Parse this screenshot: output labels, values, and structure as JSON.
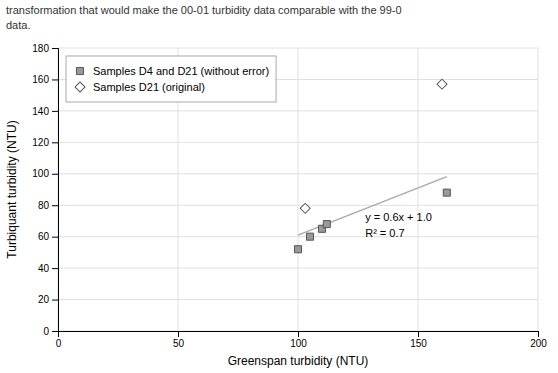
{
  "chart_data": {
    "type": "scatter",
    "subtitle": [
      "transformation that would make the 00-01 turbidity data comparable with the 99-0",
      "data."
    ],
    "xlabel": "Greenspan turbidity (NTU)",
    "ylabel": "Turbiquant turbidity (NTU)",
    "xlim": [
      0,
      200
    ],
    "ylim": [
      0,
      180
    ],
    "xticks": [
      0,
      50,
      100,
      150,
      200
    ],
    "yticks": [
      0,
      20,
      40,
      60,
      80,
      100,
      120,
      140,
      160,
      180
    ],
    "grid": true,
    "legend": "upper left",
    "series": [
      {
        "name": "Samples D4 and D21 (without error)",
        "type": "scatter",
        "marker": "square",
        "color": "#999999",
        "x": [
          100,
          105,
          110,
          112,
          162
        ],
        "values": [
          52,
          60,
          65,
          68,
          88
        ]
      },
      {
        "name": "Samples D21 (original)",
        "type": "scatter",
        "marker": "diamond",
        "color": "#ffffff",
        "x": [
          103,
          160
        ],
        "values": [
          78,
          157
        ]
      },
      {
        "type": "line",
        "line_style": "solid",
        "color": "#aaaaaa",
        "x": [
          100,
          162
        ],
        "values": [
          61,
          98.2
        ]
      }
    ],
    "annotations": [
      {
        "text": "y = 0.6x + 1.0",
        "x": 128,
        "y": 70
      },
      {
        "text": "R² = 0.7",
        "x": 128,
        "y": 60
      }
    ]
  }
}
